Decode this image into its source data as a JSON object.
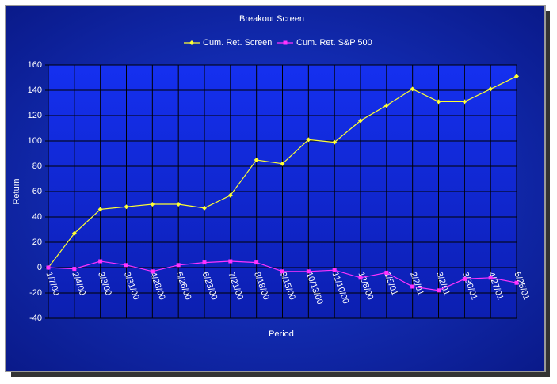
{
  "chart_data": {
    "type": "line",
    "title": "Breakout Screen",
    "x_label": "Period",
    "y_label": "Return",
    "categories": [
      "1/7/00",
      "2/4/00",
      "3/3/00",
      "3/31/00",
      "4/28/00",
      "5/26/00",
      "6/23/00",
      "7/21/00",
      "8/18/00",
      "9/15/00",
      "10/13/00",
      "11/10/00",
      "12/8/00",
      "1/5/01",
      "2/2/01",
      "3/2/01",
      "3/30/01",
      "4/27/01",
      "5/25/01"
    ],
    "series": [
      {
        "name": "Cum. Ret. Screen",
        "color": "#ffff33",
        "marker": "diamond",
        "values": [
          0,
          27,
          46,
          48,
          50,
          50,
          47,
          57,
          85,
          82,
          101,
          99,
          116,
          128,
          141,
          131,
          131,
          141,
          151
        ]
      },
      {
        "name": "Cum. Ret. S&P 500",
        "color": "#ff33ff",
        "marker": "square",
        "values": [
          0,
          -1,
          5,
          2,
          -3,
          2,
          4,
          5,
          4,
          -3,
          -3,
          -2,
          -8,
          -4,
          -15,
          -18,
          -9,
          -8,
          -12
        ]
      }
    ],
    "ylim": [
      -40,
      160
    ],
    "yticks": [
      -40,
      -20,
      0,
      20,
      40,
      60,
      80,
      100,
      120,
      140,
      160
    ],
    "grid": true
  }
}
